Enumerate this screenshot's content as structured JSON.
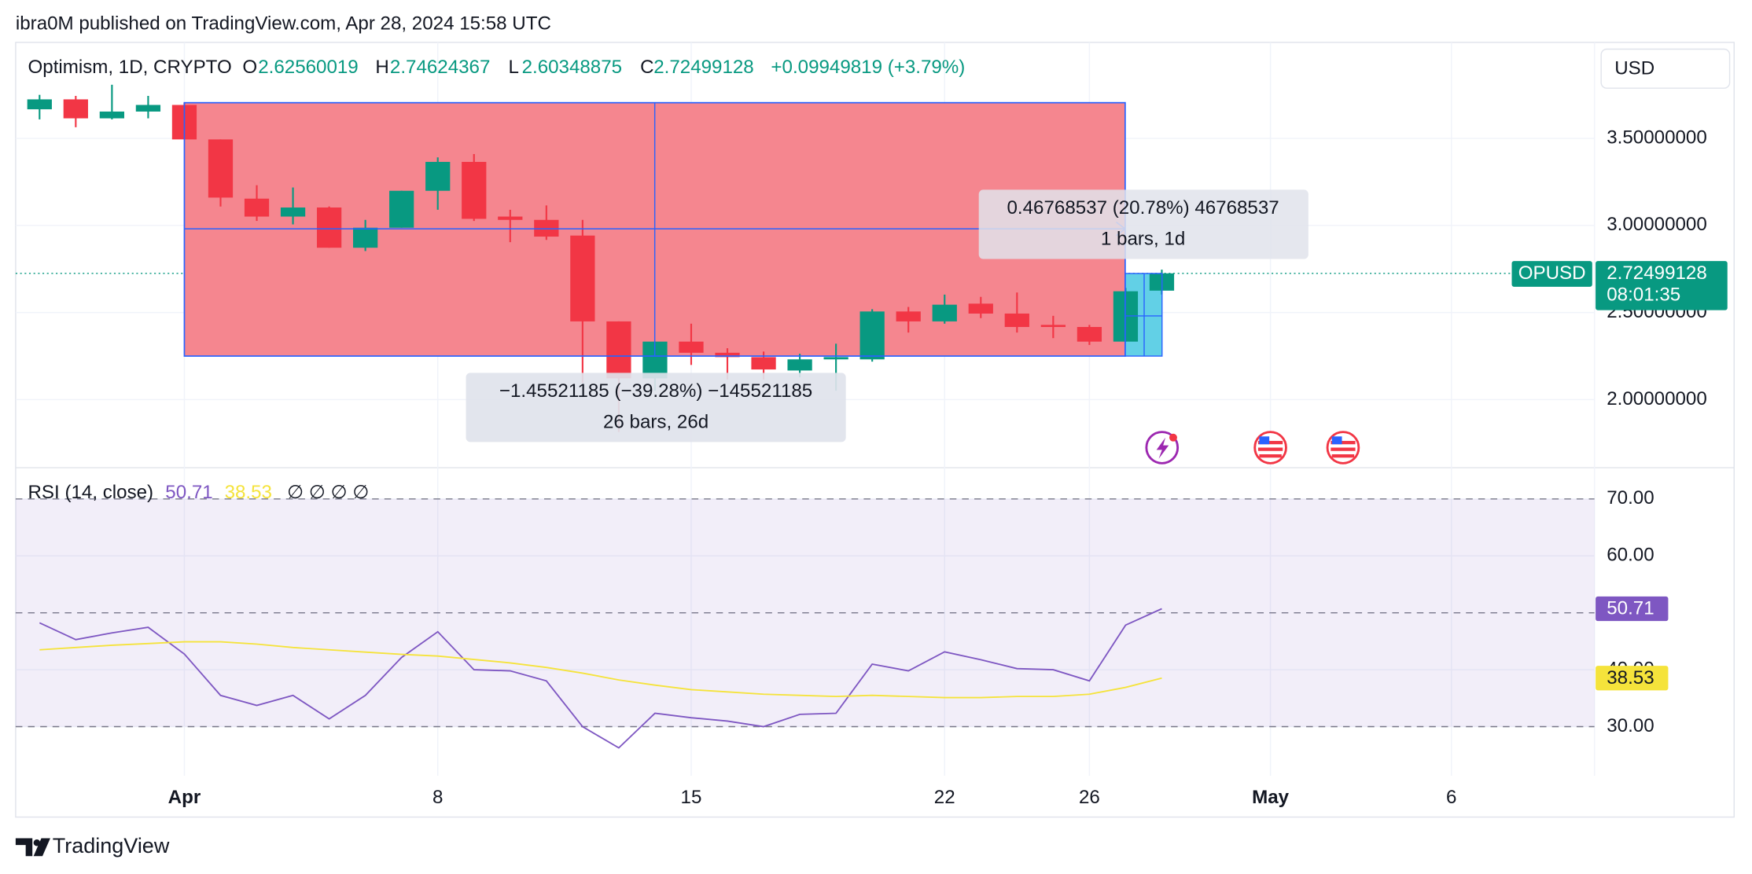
{
  "header": "ibra0M published on TradingView.com, Apr 28, 2024 15:58 UTC",
  "ohlc_letters": [
    "O",
    "H",
    "L",
    "C"
  ],
  "change": "+0.09949819 (+3.79%)",
  "measurements": [
    {
      "line1": "−1.45521185 (−39.28%) −145521185",
      "line2": "26 bars, 26d"
    },
    {
      "line1": "0.46768537 (20.78%) 46768537",
      "line2": "1 bars, 1d"
    }
  ],
  "footer": "TradingView",
  "chart_data": [
    {
      "type": "candlestick",
      "title": "Optimism, 1D, CRYPTO",
      "symbol": "OPUSD",
      "countdown": "08:01:35",
      "currency": "USD",
      "categories": [
        null,
        null,
        null,
        null,
        "Apr",
        null,
        null,
        null,
        null,
        null,
        null,
        "8",
        null,
        null,
        null,
        null,
        null,
        null,
        "15",
        null,
        null,
        null,
        null,
        null,
        null,
        "22",
        null,
        null,
        null,
        "26",
        null,
        null,
        null,
        null,
        "May",
        null,
        null,
        null,
        null,
        "6",
        null,
        null,
        null
      ],
      "open": [
        3.667,
        3.724,
        3.615,
        3.654,
        3.692,
        3.494,
        3.154,
        3.051,
        3.103,
        2.872,
        2.987,
        3.199,
        3.365,
        3.051,
        3.032,
        2.942,
        2.449,
        2.122,
        2.333,
        2.269,
        2.244,
        2.167,
        2.231,
        2.231,
        2.506,
        2.449,
        2.551,
        2.494,
        2.429,
        2.417,
        2.333,
        2.62560019,
        null,
        null,
        null,
        null,
        null,
        null,
        null,
        null,
        null,
        null,
        null
      ],
      "high": [
        3.75,
        3.744,
        3.808,
        3.744,
        3.705,
        3.494,
        3.231,
        3.218,
        3.109,
        3.032,
        3.199,
        3.391,
        3.41,
        3.09,
        3.115,
        3.032,
        2.449,
        2.333,
        2.436,
        2.295,
        2.276,
        2.263,
        2.321,
        2.519,
        2.532,
        2.603,
        2.59,
        2.615,
        2.481,
        2.429,
        2.641,
        2.74624367,
        null,
        null,
        null,
        null,
        null,
        null,
        null,
        null,
        null,
        null,
        null
      ],
      "low": [
        3.609,
        3.564,
        3.609,
        3.615,
        3.494,
        3.109,
        3.026,
        3.006,
        2.872,
        2.853,
        2.987,
        3.09,
        3.026,
        2.904,
        2.917,
        2.096,
        1.814,
        2.051,
        2.199,
        2.115,
        2.115,
        2.128,
        2.051,
        2.218,
        2.385,
        2.436,
        2.468,
        2.385,
        2.353,
        2.314,
        2.333,
        2.60348875,
        null,
        null,
        null,
        null,
        null,
        null,
        null,
        null,
        null,
        null,
        null
      ],
      "close": [
        3.724,
        3.615,
        3.654,
        3.692,
        3.494,
        3.16,
        3.051,
        3.103,
        2.872,
        2.987,
        3.199,
        3.365,
        3.038,
        3.032,
        2.936,
        2.449,
        2.122,
        2.333,
        2.269,
        2.244,
        2.173,
        2.231,
        2.244,
        2.506,
        2.449,
        2.545,
        2.494,
        2.417,
        2.417,
        2.333,
        2.622,
        2.72499128,
        null,
        null,
        null,
        null,
        null,
        null,
        null,
        null,
        null,
        null,
        null
      ],
      "up_color": "#089981",
      "down_color": "#f23645",
      "ylim": [
        1.609,
        4.051
      ],
      "yticks": [
        {
          "value": 2,
          "label": "2.00000000"
        },
        {
          "value": 2.5,
          "label": "2.50000000"
        },
        {
          "value": 3,
          "label": "3.00000000"
        },
        {
          "value": 3.5,
          "label": "3.50000000"
        }
      ],
      "grid": true
    },
    {
      "type": "line",
      "title": "RSI (14, close)",
      "extra": "∅ ∅ ∅ ∅",
      "series": [
        {
          "color": "#7e57c2",
          "values": [
            48.24,
            45.29,
            46.47,
            47.45,
            42.75,
            35.49,
            33.73,
            35.49,
            31.37,
            35.49,
            42.16,
            46.67,
            40.0,
            39.8,
            38.04,
            30.0,
            26.27,
            32.35,
            31.57,
            30.98,
            30.0,
            32.16,
            32.35,
            40.98,
            39.8,
            43.14,
            41.76,
            40.2,
            40.0,
            38.04,
            47.84,
            50.71,
            null,
            null,
            null,
            null,
            null,
            null,
            null,
            null,
            null,
            null,
            null
          ]
        },
        {
          "color": "#f5e33b",
          "values": [
            43.5,
            43.9,
            44.3,
            44.6,
            44.9,
            44.9,
            44.5,
            43.9,
            43.5,
            43.1,
            42.7,
            42.4,
            41.8,
            41.2,
            40.4,
            39.4,
            38.2,
            37.3,
            36.5,
            36.1,
            35.7,
            35.5,
            35.3,
            35.5,
            35.3,
            35.1,
            35.1,
            35.3,
            35.3,
            35.7,
            36.9,
            38.53,
            null,
            null,
            null,
            null,
            null,
            null,
            null,
            null,
            null,
            null,
            null
          ]
        }
      ],
      "ylim": [
        21.37,
        75.49
      ],
      "yticks": [
        {
          "value": 30,
          "label": "30.00"
        },
        {
          "value": 40,
          "label": "40.00"
        },
        {
          "value": 60,
          "label": "60.00"
        },
        {
          "value": 70,
          "label": "70.00"
        }
      ],
      "levels": [
        70,
        50,
        30
      ],
      "grid": true
    }
  ]
}
